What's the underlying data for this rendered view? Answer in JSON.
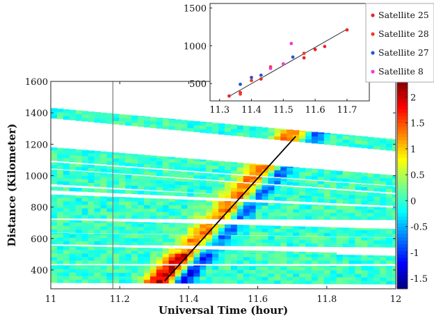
{
  "chart_data": [
    {
      "type": "heatmap",
      "xlabel": "Universal Time (hour)",
      "ylabel": "Distance (Kilometer)",
      "xlim": [
        11,
        12
      ],
      "ylim": [
        280,
        1600
      ],
      "xticks": [
        11,
        11.2,
        11.4,
        11.6,
        11.8,
        12
      ],
      "yticks": [
        400,
        600,
        800,
        1000,
        1200,
        1400,
        1600
      ],
      "xtick_labels": [
        "11",
        "11.2",
        "11.4",
        "11.6",
        "11.8",
        "12"
      ],
      "ytick_labels": [
        "400",
        "600",
        "800",
        "1000",
        "1200",
        "1400",
        "1600"
      ],
      "colorbar": {
        "range": [
          -1.7,
          2.3
        ],
        "ticks": [
          -1.5,
          -1,
          -0.5,
          0,
          0.5,
          1,
          1.5,
          2
        ],
        "tick_labels": [
          "-1.5",
          "-1",
          "-0.5",
          "0",
          "0.5",
          "1",
          "1.5",
          "2"
        ]
      },
      "vertical_line_x": 11.18,
      "trend_line": {
        "x": [
          11.33,
          11.71
        ],
        "y": [
          330,
          1250
        ]
      },
      "bands": [
        {
          "x0": 11.0,
          "x1": 12.0,
          "y0_top": 1430,
          "y0_bot": 1370,
          "y1_top": 1230,
          "y1_bot": 1160
        },
        {
          "x0": 11.0,
          "x1": 12.0,
          "y0_top": 1180,
          "y0_bot": 1100,
          "y1_top": 1000,
          "y1_bot": 940
        },
        {
          "x0": 11.0,
          "x1": 12.0,
          "y0_top": 1085,
          "y0_bot": 1050,
          "y1_top": 930,
          "y1_bot": 895
        },
        {
          "x0": 11.0,
          "x1": 12.0,
          "y0_top": 1040,
          "y0_bot": 950,
          "y1_top": 880,
          "y1_bot": 820
        },
        {
          "x0": 11.0,
          "x1": 12.0,
          "y0_top": 930,
          "y0_bot": 910,
          "y1_top": 830,
          "y1_bot": 810
        },
        {
          "x0": 11.0,
          "x1": 12.0,
          "y0_top": 880,
          "y0_bot": 730,
          "y1_top": 795,
          "y1_bot": 720
        },
        {
          "x0": 11.0,
          "x1": 12.0,
          "y0_top": 720,
          "y0_bot": 640,
          "y1_top": 660,
          "y1_bot": 610
        },
        {
          "x0": 11.0,
          "x1": 12.0,
          "y0_top": 635,
          "y0_bot": 565,
          "y1_top": 605,
          "y1_bot": 545
        },
        {
          "x0": 11.0,
          "x1": 11.82,
          "y0_top": 555,
          "y0_bot": 530,
          "y1_top": 510,
          "y1_bot": 490
        },
        {
          "x0": 11.0,
          "x1": 12.0,
          "y0_top": 530,
          "y0_bot": 440,
          "y1_top": 490,
          "y1_bot": 440
        },
        {
          "x0": 11.0,
          "x1": 12.0,
          "y0_top": 430,
          "y0_bot": 320,
          "y1_top": 425,
          "y1_bot": 310
        }
      ],
      "anomaly_ridge": {
        "amplitude": 1.8,
        "sigma_hours": 0.035,
        "start_x": 11.33,
        "start_y": 330,
        "slope_km_per_hour": 2420
      }
    },
    {
      "type": "scatter",
      "xlim": [
        11.27,
        11.77
      ],
      "ylim": [
        270,
        1560
      ],
      "xticks": [
        11.3,
        11.4,
        11.5,
        11.6,
        11.7
      ],
      "yticks": [
        500,
        1000,
        1500
      ],
      "xtick_labels": [
        "11.3",
        "11.4",
        "11.5",
        "11.6",
        "11.7"
      ],
      "ytick_labels": [
        "500",
        "1000",
        "1500"
      ],
      "legend_position": "right",
      "fit_line": {
        "x": [
          11.33,
          11.7
        ],
        "y": [
          330,
          1220
        ]
      },
      "series": [
        {
          "name": "Satellite 25",
          "color": "#e8262a",
          "x": [
            11.33,
            11.365,
            11.43,
            11.565,
            11.6,
            11.63,
            11.7
          ],
          "y": [
            335,
            380,
            560,
            840,
            950,
            990,
            1210
          ]
        },
        {
          "name": "Satellite 28",
          "color": "#f03a2a",
          "x": [
            11.365,
            11.4,
            11.46,
            11.565
          ],
          "y": [
            360,
            540,
            720,
            900
          ]
        },
        {
          "name": "Satellite 27",
          "color": "#2456d8",
          "x": [
            11.365,
            11.4,
            11.43,
            11.53
          ],
          "y": [
            490,
            580,
            610,
            850
          ]
        },
        {
          "name": "Satellite 8",
          "color": "#ee3ad4",
          "x": [
            11.46,
            11.5,
            11.525
          ],
          "y": [
            700,
            760,
            1030
          ]
        }
      ]
    }
  ]
}
